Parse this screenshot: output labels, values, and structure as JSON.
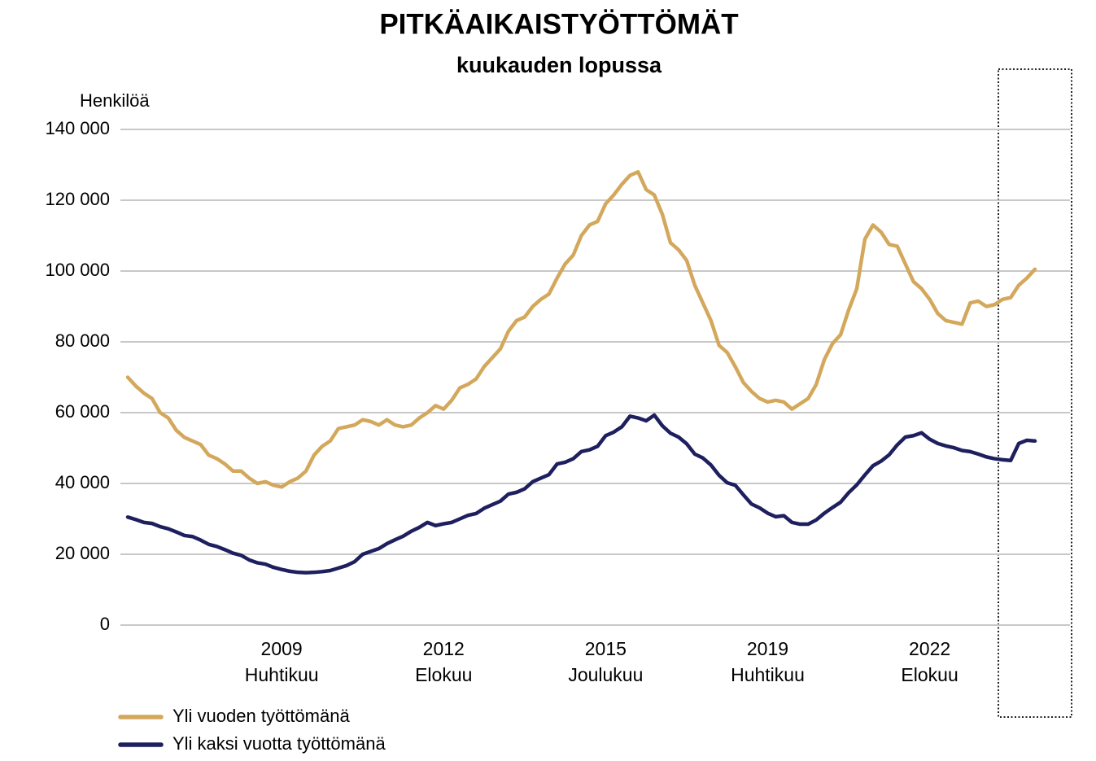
{
  "chart_data": {
    "type": "line",
    "title": "PITKÄAIKAISTYÖTTÖMÄT",
    "subtitle": "kuukauden lopussa",
    "y_label": "Henkilöä",
    "categories": [
      null,
      null,
      null,
      null,
      null,
      null,
      null,
      null,
      null,
      null,
      null,
      null,
      null,
      null,
      null,
      null,
      null,
      null,
      null,
      "2009\nHuhtikuu",
      null,
      null,
      null,
      null,
      null,
      null,
      null,
      null,
      null,
      null,
      null,
      null,
      null,
      null,
      null,
      null,
      null,
      null,
      null,
      "2012\nElokuu",
      null,
      null,
      null,
      null,
      null,
      null,
      null,
      null,
      null,
      null,
      null,
      null,
      null,
      null,
      null,
      null,
      null,
      null,
      null,
      "2015\nJoulukuu",
      null,
      null,
      null,
      null,
      null,
      null,
      null,
      null,
      null,
      null,
      null,
      null,
      null,
      null,
      null,
      null,
      null,
      null,
      null,
      "2019\nHuhtikuu",
      null,
      null,
      null,
      null,
      null,
      null,
      null,
      null,
      null,
      null,
      null,
      null,
      null,
      null,
      null,
      null,
      null,
      null,
      null,
      "2022\nElokuu",
      null,
      null,
      null,
      null,
      null,
      null,
      null,
      null,
      null,
      null,
      null,
      null,
      null
    ],
    "series": [
      {
        "name": "Yli vuoden työttömänä",
        "color": "#d3a85c",
        "values": [
          70000,
          67500,
          65500,
          64000,
          60000,
          58500,
          55000,
          53000,
          52000,
          51000,
          48000,
          47000,
          45500,
          43500,
          43500,
          41500,
          40000,
          40500,
          39500,
          39000,
          40500,
          41500,
          43500,
          48000,
          50500,
          52000,
          55500,
          56000,
          56500,
          58000,
          57500,
          56500,
          58000,
          56500,
          56000,
          56500,
          58500,
          60000,
          62000,
          61000,
          63500,
          67000,
          68000,
          69500,
          73000,
          75500,
          78000,
          83000,
          86000,
          87000,
          90000,
          92000,
          93500,
          98000,
          102000,
          104500,
          110000,
          113000,
          114000,
          119000,
          121500,
          124500,
          127000,
          128000,
          123000,
          121500,
          116000,
          108000,
          106000,
          103000,
          96000,
          91000,
          86000,
          79000,
          77000,
          73000,
          68500,
          66000,
          64000,
          63000,
          63500,
          63000,
          61000,
          62500,
          64000,
          68000,
          75000,
          79500,
          82000,
          89000,
          95000,
          109000,
          113000,
          111000,
          107500,
          107000,
          102000,
          97000,
          95000,
          92000,
          88000,
          86000,
          85500,
          85000,
          91000,
          91500,
          90000,
          90500,
          92000,
          92500,
          96000,
          98000,
          100500
        ]
      },
      {
        "name": "Yli kaksi vuotta työttömänä",
        "color": "#1e1f5e",
        "values": [
          30500,
          29800,
          29000,
          28700,
          27800,
          27200,
          26300,
          25300,
          25000,
          24000,
          22800,
          22200,
          21300,
          20300,
          19700,
          18400,
          17600,
          17200,
          16300,
          15700,
          15200,
          14900,
          14800,
          14900,
          15100,
          15400,
          16100,
          16800,
          17900,
          20000,
          20800,
          21600,
          23000,
          24100,
          25100,
          26500,
          27600,
          29000,
          28100,
          28600,
          29000,
          30000,
          31000,
          31500,
          33000,
          34000,
          35000,
          37000,
          37500,
          38500,
          40500,
          41500,
          42500,
          45500,
          46000,
          47000,
          49000,
          49500,
          50500,
          53500,
          54500,
          56000,
          59000,
          58500,
          57700,
          59300,
          56300,
          54200,
          53100,
          51200,
          48300,
          47200,
          45200,
          42300,
          40200,
          39500,
          36800,
          34200,
          33100,
          31600,
          30600,
          30900,
          29000,
          28500,
          28500,
          29700,
          31600,
          33200,
          34700,
          37400,
          39600,
          42400,
          45000,
          46300,
          48100,
          50900,
          53100,
          53500,
          54300,
          52500,
          51300,
          50600,
          50100,
          49300,
          49000,
          48300,
          47500,
          47000,
          46700,
          46500,
          51300,
          52200,
          52000
        ]
      }
    ],
    "ylim": [
      0,
      140000
    ],
    "yticks": [
      0,
      {
        "value": 20000,
        "label": "20 000"
      },
      {
        "value": 40000,
        "label": "40 000"
      },
      {
        "value": 60000,
        "label": "60 000"
      },
      {
        "value": 80000,
        "label": "80 000"
      },
      {
        "value": 100000,
        "label": "100 000"
      },
      {
        "value": 120000,
        "label": "120 000"
      },
      {
        "value": 140000,
        "label": "140 000"
      }
    ],
    "grid": true,
    "legend": "bottom-left"
  }
}
